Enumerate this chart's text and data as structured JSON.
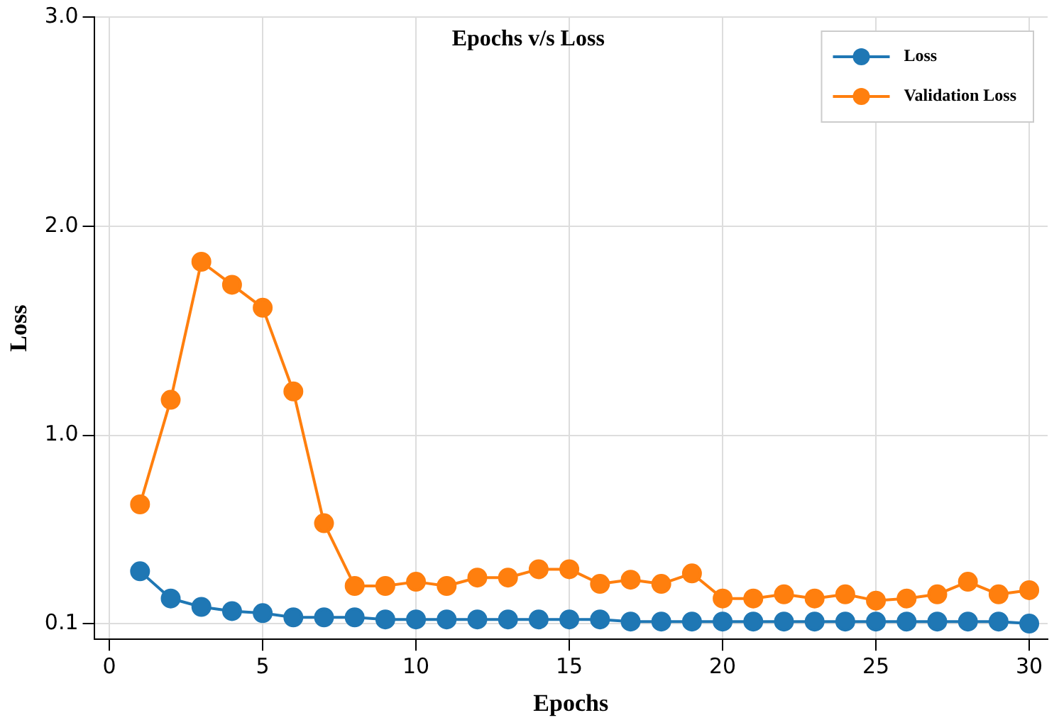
{
  "chart_data": {
    "type": "line",
    "title": "Epochs v/s Loss",
    "xlabel": "Epochs",
    "ylabel": "Loss",
    "x": [
      1,
      2,
      3,
      4,
      5,
      6,
      7,
      8,
      9,
      10,
      11,
      12,
      13,
      14,
      15,
      16,
      17,
      18,
      19,
      20,
      21,
      22,
      23,
      24,
      25,
      26,
      27,
      28,
      29,
      30
    ],
    "series": [
      {
        "name": "Loss",
        "color": "#1f77b4",
        "values": [
          0.35,
          0.22,
          0.18,
          0.16,
          0.15,
          0.13,
          0.13,
          0.13,
          0.12,
          0.12,
          0.12,
          0.12,
          0.12,
          0.12,
          0.12,
          0.12,
          0.11,
          0.11,
          0.11,
          0.11,
          0.11,
          0.11,
          0.11,
          0.11,
          0.11,
          0.11,
          0.11,
          0.11,
          0.11,
          0.1
        ]
      },
      {
        "name": "Validation Loss",
        "color": "#ff7f0e",
        "values": [
          0.67,
          1.17,
          1.83,
          1.72,
          1.61,
          1.21,
          0.58,
          0.28,
          0.28,
          0.3,
          0.28,
          0.32,
          0.32,
          0.36,
          0.36,
          0.29,
          0.31,
          0.29,
          0.34,
          0.22,
          0.22,
          0.24,
          0.22,
          0.24,
          0.21,
          0.22,
          0.24,
          0.3,
          0.24,
          0.26
        ]
      }
    ],
    "xlim": [
      -0.5,
      30.6
    ],
    "xticks": [
      0,
      5,
      10,
      15,
      20,
      25,
      30
    ],
    "ylim": [
      0.025,
      3.0
    ],
    "yticks": [
      {
        "value": 0.1,
        "label": "0.1"
      },
      {
        "value": 1,
        "label": "1.0"
      },
      {
        "value": 2,
        "label": "2.0"
      },
      {
        "value": 3,
        "label": "3.0"
      }
    ],
    "grid": true,
    "legend": "top right",
    "marker": "circle",
    "line_style": "solid"
  }
}
